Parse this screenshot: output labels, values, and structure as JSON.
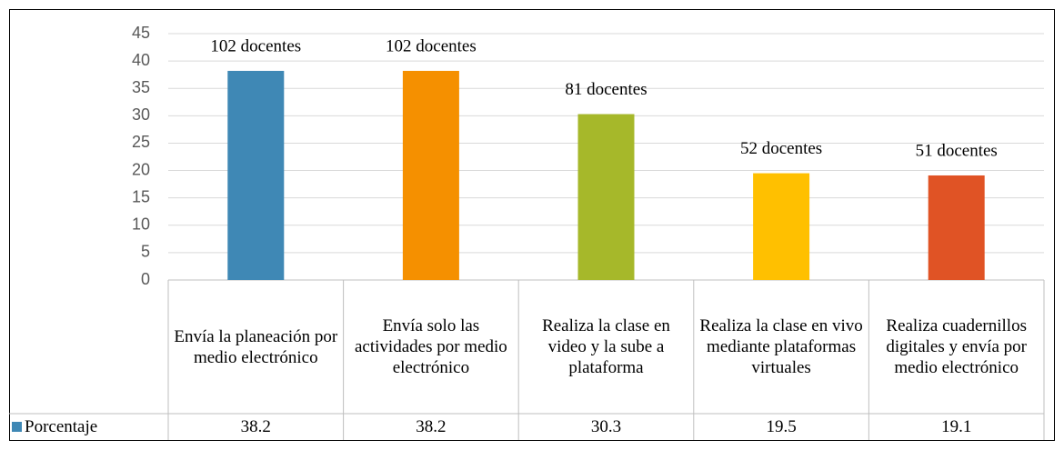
{
  "chart_data": {
    "type": "bar",
    "categories": [
      "Envía la planeación por medio electrónico",
      "Envía solo las actividades por medio electrónico",
      "Realiza la clase en video y la sube a plataforma",
      "Realiza la clase en vivo mediante plataformas virtuales",
      "Realiza cuadernillos digitales y envía por medio electrónico"
    ],
    "series": [
      {
        "name": "Porcentaje",
        "color": "#3f88b5",
        "values": [
          38.2,
          38.2,
          30.3,
          19.5,
          19.1
        ]
      }
    ],
    "colors": [
      "#3f88b5",
      "#f59000",
      "#a6b82a",
      "#ffc000",
      "#e05325"
    ],
    "annotations": [
      "102 docentes",
      "102 docentes",
      "81 docentes",
      "52 docentes",
      "51 docentes"
    ],
    "ylim": [
      0,
      45
    ],
    "yticks": [
      0,
      5,
      10,
      15,
      20,
      25,
      30,
      35,
      40,
      45
    ],
    "grid": true
  }
}
